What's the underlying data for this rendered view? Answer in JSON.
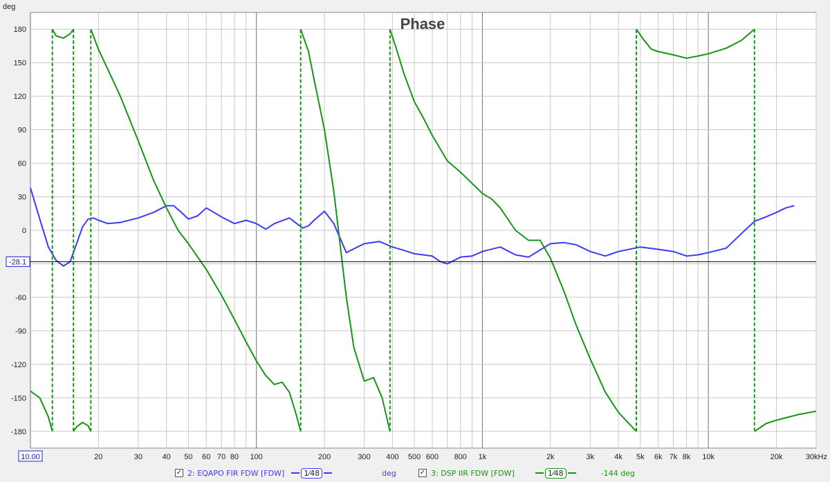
{
  "chart_data": {
    "type": "line",
    "title": "Phase",
    "ylabel": "deg",
    "xscale": "log",
    "xlim": [
      10,
      30000
    ],
    "ylim": [
      -195,
      195
    ],
    "y_ticks": [
      180,
      150,
      120,
      90,
      60,
      30,
      0,
      -30,
      -60,
      -90,
      -120,
      -150,
      -180
    ],
    "x_tick_labels": [
      {
        "f": 10,
        "label": "10.00"
      },
      {
        "f": 20,
        "label": "20"
      },
      {
        "f": 30,
        "label": "30"
      },
      {
        "f": 40,
        "label": "40"
      },
      {
        "f": 50,
        "label": "50"
      },
      {
        "f": 60,
        "label": "60"
      },
      {
        "f": 70,
        "label": "70"
      },
      {
        "f": 80,
        "label": "80"
      },
      {
        "f": 100,
        "label": "100"
      },
      {
        "f": 200,
        "label": "200"
      },
      {
        "f": 300,
        "label": "300"
      },
      {
        "f": 400,
        "label": "400"
      },
      {
        "f": 500,
        "label": "500"
      },
      {
        "f": 600,
        "label": "600"
      },
      {
        "f": 800,
        "label": "800"
      },
      {
        "f": 1000,
        "label": "1k"
      },
      {
        "f": 2000,
        "label": "2k"
      },
      {
        "f": 3000,
        "label": "3k"
      },
      {
        "f": 4000,
        "label": "4k"
      },
      {
        "f": 5000,
        "label": "5k"
      },
      {
        "f": 6000,
        "label": "6k"
      },
      {
        "f": 7000,
        "label": "7k"
      },
      {
        "f": 8000,
        "label": "8k"
      },
      {
        "f": 10000,
        "label": "10k"
      },
      {
        "f": 20000,
        "label": "20k"
      },
      {
        "f": 30000,
        "label": "30kHz"
      }
    ],
    "cursor_y": -28.1,
    "cursor_label": "-28.1",
    "grid": true,
    "series": [
      {
        "name": "2: EQAPO FIR FDW [FDW]",
        "color": "#3a3aff",
        "style": "solid",
        "x": [
          10,
          11,
          12,
          13,
          14,
          15,
          16,
          17,
          18,
          19,
          20,
          22,
          25,
          30,
          35,
          40,
          43,
          46,
          50,
          55,
          60,
          70,
          80,
          90,
          100,
          110,
          120,
          140,
          160,
          170,
          180,
          200,
          220,
          250,
          280,
          300,
          350,
          400,
          450,
          500,
          600,
          650,
          700,
          800,
          900,
          1000,
          1200,
          1400,
          1600,
          2000,
          2300,
          2600,
          3000,
          3500,
          4000,
          5000,
          6000,
          7000,
          8000,
          9000,
          10000,
          12000,
          14000,
          16000,
          18000,
          20000,
          22000,
          24000
        ],
        "y": [
          38,
          10,
          -15,
          -27,
          -32,
          -28,
          -12,
          3,
          10,
          11,
          9,
          6,
          7,
          11,
          16,
          22,
          22,
          17,
          10,
          13,
          20,
          12,
          6,
          9,
          6,
          1,
          6,
          11,
          2,
          4,
          9,
          17,
          6,
          -20,
          -15,
          -12,
          -10,
          -15,
          -18,
          -21,
          -23,
          -28,
          -30,
          -24,
          -23,
          -19,
          -15,
          -22,
          -24,
          -12,
          -11,
          -13,
          -19,
          -23,
          -19,
          -15,
          -17,
          -19,
          -23,
          -22,
          -20,
          -16,
          -3,
          8,
          12,
          16,
          20,
          22
        ]
      },
      {
        "name": "3: DSP IIR FDW [FDW]",
        "color": "#149614",
        "style": "solid",
        "x": [
          10,
          11,
          12,
          12.5,
          12.5,
          13,
          14,
          15,
          15.5,
          15.5,
          16,
          17,
          18,
          18.5,
          18.5,
          20,
          25,
          30,
          35,
          40,
          45,
          50,
          55,
          60,
          70,
          80,
          90,
          100,
          110,
          120,
          130,
          140,
          150,
          157,
          157,
          170,
          180,
          200,
          220,
          250,
          270,
          300,
          330,
          360,
          390,
          390,
          420,
          450,
          500,
          550,
          600,
          700,
          800,
          900,
          1000,
          1100,
          1200,
          1400,
          1600,
          1800,
          2000,
          2300,
          2600,
          3000,
          3500,
          4000,
          4500,
          4800,
          4800,
          5200,
          5600,
          6000,
          7000,
          8000,
          9000,
          10000,
          12000,
          14000,
          16000,
          16000,
          18000,
          20000,
          25000,
          30000
        ],
        "y": [
          -144,
          -150,
          -167,
          -180,
          180,
          174,
          172,
          176,
          180,
          -180,
          -176,
          -172,
          -175,
          -180,
          180,
          162,
          120,
          80,
          45,
          20,
          0,
          -12,
          -24,
          -35,
          -58,
          -80,
          -100,
          -117,
          -130,
          -138,
          -136,
          -145,
          -165,
          -180,
          180,
          160,
          135,
          90,
          35,
          -60,
          -105,
          -135,
          -132,
          -150,
          -180,
          180,
          160,
          140,
          115,
          100,
          85,
          62,
          52,
          42,
          33,
          28,
          20,
          0,
          -9,
          -9,
          -25,
          -55,
          -85,
          -115,
          -145,
          -163,
          -174,
          -180,
          180,
          170,
          162,
          160,
          157,
          154,
          156,
          158,
          163,
          170,
          180,
          -180,
          -173,
          -170,
          -165,
          -162
        ]
      }
    ],
    "wrap_jumps": [
      12.5,
      15.5,
      18.5,
      157,
      390,
      4800,
      16000
    ],
    "legend": [
      {
        "checkbox": "✓",
        "name": "2: EQAPO FIR FDW [FDW]",
        "smoothing": "1⁄48",
        "unit": "deg",
        "value": ""
      },
      {
        "checkbox": "✓",
        "name": "3: DSP IIR FDW [FDW]",
        "smoothing": "1⁄48",
        "unit": "",
        "value": "-144 deg"
      }
    ]
  }
}
